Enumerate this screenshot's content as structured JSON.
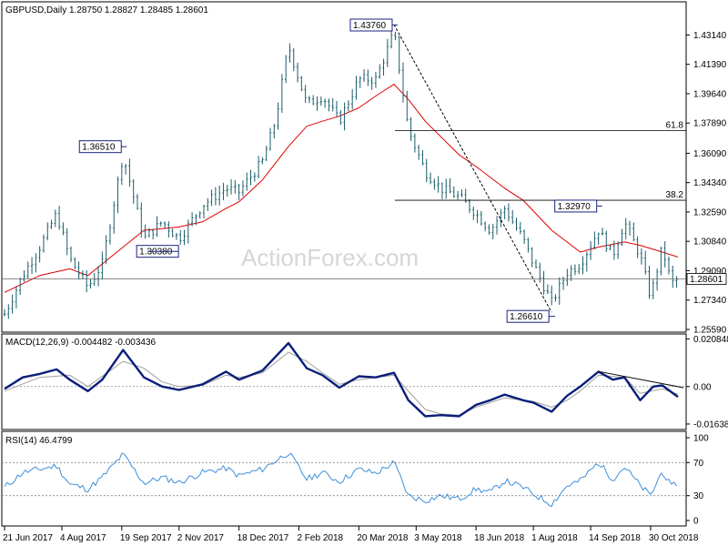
{
  "header": {
    "symbol": "GBPUSD,Daily",
    "ohlc": "1.28750 1.28827 1.28485 1.28601"
  },
  "watermark": "ActionForex.com",
  "colors": {
    "price_bars": "#1b5e6b",
    "ma": "#e00000",
    "macd": "#0a1e7a",
    "signal": "#a0a0a0",
    "rsi": "#3d8fd9",
    "fib": "#000000",
    "current": "#666666"
  },
  "chart_data": [
    {
      "type": "bar",
      "panel": "price",
      "title": "",
      "ylim": [
        1.2559,
        1.4414
      ],
      "y_ticks": [
        "1.43140",
        "1.41390",
        "1.39640",
        "1.37890",
        "1.36090",
        "1.34340",
        "1.32590",
        "1.30840",
        "1.29090",
        "1.27340",
        "1.25590"
      ],
      "current_value_label": "1.28601",
      "swing_labels": [
        {
          "text": "1.43760",
          "x": "2018-04-16",
          "y": 1.4376
        },
        {
          "text": "1.36510",
          "x": "2017-09-20",
          "y": 1.3651
        },
        {
          "text": "1.30380",
          "x": "2017-10-06",
          "y": 1.3038
        },
        {
          "text": "1.32970",
          "x": "2018-09-20",
          "y": 1.3297
        },
        {
          "text": "1.26610",
          "x": "2018-08-15",
          "y": 1.2661
        }
      ],
      "fib_levels": [
        {
          "label": "61.8",
          "value": 1.3744
        },
        {
          "label": "38.2",
          "value": 1.3329
        }
      ],
      "trendline": [
        {
          "x": "2018-04-16",
          "y": 1.4376
        },
        {
          "x": "2018-08-15",
          "y": 1.2661
        }
      ],
      "close_points": [
        {
          "x": "2017-06-21",
          "y": 1.265
        },
        {
          "x": "2017-07-05",
          "y": 1.288
        },
        {
          "x": "2017-07-18",
          "y": 1.305
        },
        {
          "x": "2017-07-31",
          "y": 1.325
        },
        {
          "x": "2017-08-10",
          "y": 1.298
        },
        {
          "x": "2017-08-24",
          "y": 1.281
        },
        {
          "x": "2017-09-04",
          "y": 1.295
        },
        {
          "x": "2017-09-20",
          "y": 1.36
        },
        {
          "x": "2017-10-06",
          "y": 1.31
        },
        {
          "x": "2017-10-20",
          "y": 1.32
        },
        {
          "x": "2017-11-02",
          "y": 1.31
        },
        {
          "x": "2017-11-20",
          "y": 1.33
        },
        {
          "x": "2017-12-08",
          "y": 1.34
        },
        {
          "x": "2017-12-18",
          "y": 1.338
        },
        {
          "x": "2018-01-05",
          "y": 1.356
        },
        {
          "x": "2018-01-15",
          "y": 1.38
        },
        {
          "x": "2018-01-25",
          "y": 1.425
        },
        {
          "x": "2018-02-08",
          "y": 1.39
        },
        {
          "x": "2018-02-20",
          "y": 1.395
        },
        {
          "x": "2018-03-05",
          "y": 1.38
        },
        {
          "x": "2018-03-20",
          "y": 1.405
        },
        {
          "x": "2018-04-02",
          "y": 1.405
        },
        {
          "x": "2018-04-16",
          "y": 1.433
        },
        {
          "x": "2018-04-27",
          "y": 1.375
        },
        {
          "x": "2018-05-10",
          "y": 1.35
        },
        {
          "x": "2018-05-22",
          "y": 1.34
        },
        {
          "x": "2018-06-05",
          "y": 1.335
        },
        {
          "x": "2018-06-18",
          "y": 1.325
        },
        {
          "x": "2018-06-29",
          "y": 1.315
        },
        {
          "x": "2018-07-10",
          "y": 1.328
        },
        {
          "x": "2018-07-24",
          "y": 1.31
        },
        {
          "x": "2018-08-01",
          "y": 1.295
        },
        {
          "x": "2018-08-15",
          "y": 1.272
        },
        {
          "x": "2018-08-27",
          "y": 1.29
        },
        {
          "x": "2018-09-06",
          "y": 1.295
        },
        {
          "x": "2018-09-20",
          "y": 1.315
        },
        {
          "x": "2018-10-01",
          "y": 1.3
        },
        {
          "x": "2018-10-10",
          "y": 1.32
        },
        {
          "x": "2018-10-22",
          "y": 1.3
        },
        {
          "x": "2018-10-30",
          "y": 1.275
        },
        {
          "x": "2018-11-08",
          "y": 1.305
        },
        {
          "x": "2018-11-15",
          "y": 1.283
        },
        {
          "x": "2018-11-20",
          "y": 1.286
        }
      ],
      "ma_points": [
        {
          "x": "2017-06-21",
          "y": 1.278
        },
        {
          "x": "2017-07-18",
          "y": 1.288
        },
        {
          "x": "2017-08-10",
          "y": 1.292
        },
        {
          "x": "2017-08-24",
          "y": 1.288
        },
        {
          "x": "2017-09-20",
          "y": 1.305
        },
        {
          "x": "2017-10-06",
          "y": 1.315
        },
        {
          "x": "2017-10-20",
          "y": 1.316
        },
        {
          "x": "2017-11-02",
          "y": 1.317
        },
        {
          "x": "2017-11-20",
          "y": 1.32
        },
        {
          "x": "2017-12-08",
          "y": 1.328
        },
        {
          "x": "2017-12-18",
          "y": 1.332
        },
        {
          "x": "2018-01-05",
          "y": 1.345
        },
        {
          "x": "2018-01-25",
          "y": 1.365
        },
        {
          "x": "2018-02-08",
          "y": 1.377
        },
        {
          "x": "2018-02-20",
          "y": 1.38
        },
        {
          "x": "2018-03-05",
          "y": 1.383
        },
        {
          "x": "2018-03-20",
          "y": 1.388
        },
        {
          "x": "2018-04-02",
          "y": 1.395
        },
        {
          "x": "2018-04-16",
          "y": 1.402
        },
        {
          "x": "2018-04-27",
          "y": 1.393
        },
        {
          "x": "2018-05-10",
          "y": 1.38
        },
        {
          "x": "2018-06-05",
          "y": 1.36
        },
        {
          "x": "2018-06-18",
          "y": 1.353
        },
        {
          "x": "2018-07-10",
          "y": 1.34
        },
        {
          "x": "2018-07-24",
          "y": 1.333
        },
        {
          "x": "2018-08-15",
          "y": 1.315
        },
        {
          "x": "2018-09-06",
          "y": 1.302
        },
        {
          "x": "2018-09-20",
          "y": 1.305
        },
        {
          "x": "2018-10-10",
          "y": 1.308
        },
        {
          "x": "2018-10-22",
          "y": 1.306
        },
        {
          "x": "2018-11-08",
          "y": 1.302
        },
        {
          "x": "2018-11-20",
          "y": 1.299
        }
      ]
    },
    {
      "type": "line",
      "panel": "macd",
      "title": "MACD(12,26,9) -0.004482 -0.003436",
      "ylim": [
        -0.018,
        0.021
      ],
      "y_ticks": [
        {
          "label": "0.020848",
          "value": 0.020848
        },
        {
          "label": "0.00",
          "value": 0
        },
        {
          "label": "-0.016389",
          "value": -0.016389
        }
      ],
      "macd_points": [
        {
          "x": "2017-06-21",
          "y": -0.001
        },
        {
          "x": "2017-07-05",
          "y": 0.004
        },
        {
          "x": "2017-07-18",
          "y": 0.0055
        },
        {
          "x": "2017-07-31",
          "y": 0.0075
        },
        {
          "x": "2017-08-10",
          "y": 0.003
        },
        {
          "x": "2017-08-24",
          "y": -0.002
        },
        {
          "x": "2017-09-04",
          "y": 0.003
        },
        {
          "x": "2017-09-20",
          "y": 0.016
        },
        {
          "x": "2017-10-06",
          "y": 0.004
        },
        {
          "x": "2017-10-20",
          "y": 0.0
        },
        {
          "x": "2017-11-02",
          "y": -0.0015
        },
        {
          "x": "2017-11-20",
          "y": 0.001
        },
        {
          "x": "2017-12-08",
          "y": 0.0065
        },
        {
          "x": "2017-12-18",
          "y": 0.003
        },
        {
          "x": "2018-01-05",
          "y": 0.007
        },
        {
          "x": "2018-01-25",
          "y": 0.019
        },
        {
          "x": "2018-02-08",
          "y": 0.008
        },
        {
          "x": "2018-02-20",
          "y": 0.005
        },
        {
          "x": "2018-03-05",
          "y": -0.0005
        },
        {
          "x": "2018-03-20",
          "y": 0.0045
        },
        {
          "x": "2018-04-02",
          "y": 0.004
        },
        {
          "x": "2018-04-16",
          "y": 0.006
        },
        {
          "x": "2018-04-27",
          "y": -0.006
        },
        {
          "x": "2018-05-10",
          "y": -0.013
        },
        {
          "x": "2018-05-22",
          "y": -0.0125
        },
        {
          "x": "2018-06-05",
          "y": -0.013
        },
        {
          "x": "2018-06-18",
          "y": -0.008
        },
        {
          "x": "2018-06-29",
          "y": -0.006
        },
        {
          "x": "2018-07-10",
          "y": -0.0035
        },
        {
          "x": "2018-07-24",
          "y": -0.006
        },
        {
          "x": "2018-08-01",
          "y": -0.007
        },
        {
          "x": "2018-08-15",
          "y": -0.011
        },
        {
          "x": "2018-08-27",
          "y": -0.004
        },
        {
          "x": "2018-09-06",
          "y": 0.0
        },
        {
          "x": "2018-09-20",
          "y": 0.0065
        },
        {
          "x": "2018-10-01",
          "y": 0.003
        },
        {
          "x": "2018-10-10",
          "y": 0.004
        },
        {
          "x": "2018-10-22",
          "y": -0.006
        },
        {
          "x": "2018-11-01",
          "y": 0.0
        },
        {
          "x": "2018-11-08",
          "y": 0.0005
        },
        {
          "x": "2018-11-20",
          "y": -0.0045
        }
      ],
      "signal_points": [
        {
          "x": "2017-06-21",
          "y": -0.002
        },
        {
          "x": "2017-07-18",
          "y": 0.004
        },
        {
          "x": "2017-08-10",
          "y": 0.005
        },
        {
          "x": "2017-08-24",
          "y": 0.0
        },
        {
          "x": "2017-09-20",
          "y": 0.011
        },
        {
          "x": "2017-10-06",
          "y": 0.008
        },
        {
          "x": "2017-10-20",
          "y": 0.002
        },
        {
          "x": "2017-11-02",
          "y": 0.0
        },
        {
          "x": "2017-11-20",
          "y": 0.0005
        },
        {
          "x": "2017-12-08",
          "y": 0.005
        },
        {
          "x": "2017-12-18",
          "y": 0.004
        },
        {
          "x": "2018-01-05",
          "y": 0.006
        },
        {
          "x": "2018-01-25",
          "y": 0.015
        },
        {
          "x": "2018-02-08",
          "y": 0.011
        },
        {
          "x": "2018-02-20",
          "y": 0.006
        },
        {
          "x": "2018-03-05",
          "y": 0.001
        },
        {
          "x": "2018-03-20",
          "y": 0.003
        },
        {
          "x": "2018-04-16",
          "y": 0.005
        },
        {
          "x": "2018-04-27",
          "y": -0.002
        },
        {
          "x": "2018-05-10",
          "y": -0.01
        },
        {
          "x": "2018-05-22",
          "y": -0.012
        },
        {
          "x": "2018-06-05",
          "y": -0.0125
        },
        {
          "x": "2018-06-18",
          "y": -0.009
        },
        {
          "x": "2018-07-10",
          "y": -0.005
        },
        {
          "x": "2018-08-01",
          "y": -0.0065
        },
        {
          "x": "2018-08-15",
          "y": -0.009
        },
        {
          "x": "2018-08-27",
          "y": -0.006
        },
        {
          "x": "2018-09-06",
          "y": -0.002
        },
        {
          "x": "2018-09-20",
          "y": 0.005
        },
        {
          "x": "2018-10-10",
          "y": 0.004
        },
        {
          "x": "2018-10-22",
          "y": -0.003
        },
        {
          "x": "2018-11-08",
          "y": -0.001
        },
        {
          "x": "2018-11-20",
          "y": -0.0034
        }
      ],
      "trendline": [
        {
          "x": "2018-09-20",
          "y": 0.0066
        },
        {
          "x": "2018-11-20",
          "y": -0.0005
        }
      ]
    },
    {
      "type": "line",
      "panel": "rsi",
      "title": "RSI(14) 46.4799",
      "ylim": [
        0,
        100
      ],
      "y_ticks": [
        {
          "label": "100",
          "value": 100
        },
        {
          "label": "70",
          "value": 70
        },
        {
          "label": "30",
          "value": 30
        },
        {
          "label": "0",
          "value": 0
        }
      ],
      "levels": [
        70,
        30
      ],
      "points": [
        {
          "x": "2017-06-21",
          "y": 40
        },
        {
          "x": "2017-07-05",
          "y": 58
        },
        {
          "x": "2017-07-18",
          "y": 62
        },
        {
          "x": "2017-07-31",
          "y": 66
        },
        {
          "x": "2017-08-10",
          "y": 44
        },
        {
          "x": "2017-08-24",
          "y": 38
        },
        {
          "x": "2017-09-04",
          "y": 52
        },
        {
          "x": "2017-09-20",
          "y": 80
        },
        {
          "x": "2017-10-06",
          "y": 45
        },
        {
          "x": "2017-10-20",
          "y": 52
        },
        {
          "x": "2017-11-02",
          "y": 46
        },
        {
          "x": "2017-11-20",
          "y": 58
        },
        {
          "x": "2017-12-08",
          "y": 63
        },
        {
          "x": "2017-12-18",
          "y": 54
        },
        {
          "x": "2018-01-05",
          "y": 62
        },
        {
          "x": "2018-01-25",
          "y": 82
        },
        {
          "x": "2018-02-08",
          "y": 50
        },
        {
          "x": "2018-02-20",
          "y": 58
        },
        {
          "x": "2018-03-05",
          "y": 47
        },
        {
          "x": "2018-03-20",
          "y": 62
        },
        {
          "x": "2018-04-02",
          "y": 57
        },
        {
          "x": "2018-04-16",
          "y": 70
        },
        {
          "x": "2018-04-27",
          "y": 30
        },
        {
          "x": "2018-05-10",
          "y": 24
        },
        {
          "x": "2018-05-22",
          "y": 30
        },
        {
          "x": "2018-06-05",
          "y": 26
        },
        {
          "x": "2018-06-18",
          "y": 38
        },
        {
          "x": "2018-06-29",
          "y": 34
        },
        {
          "x": "2018-07-10",
          "y": 48
        },
        {
          "x": "2018-07-24",
          "y": 40
        },
        {
          "x": "2018-08-01",
          "y": 32
        },
        {
          "x": "2018-08-15",
          "y": 20
        },
        {
          "x": "2018-08-27",
          "y": 42
        },
        {
          "x": "2018-09-06",
          "y": 48
        },
        {
          "x": "2018-09-20",
          "y": 70
        },
        {
          "x": "2018-10-01",
          "y": 50
        },
        {
          "x": "2018-10-10",
          "y": 65
        },
        {
          "x": "2018-10-22",
          "y": 42
        },
        {
          "x": "2018-10-30",
          "y": 30
        },
        {
          "x": "2018-11-08",
          "y": 60
        },
        {
          "x": "2018-11-15",
          "y": 40
        },
        {
          "x": "2018-11-20",
          "y": 46.5
        }
      ]
    }
  ],
  "x_axis": {
    "start": "2017-06-21",
    "end": "2018-11-20",
    "ticks": [
      {
        "label": "21 Jun 2017",
        "date": "2017-06-21"
      },
      {
        "label": "4 Aug 2017",
        "date": "2017-08-04"
      },
      {
        "label": "19 Sep 2017",
        "date": "2017-09-19"
      },
      {
        "label": "2 Nov 2017",
        "date": "2017-11-02"
      },
      {
        "label": "18 Dec 2017",
        "date": "2017-12-18"
      },
      {
        "label": "2 Feb 2018",
        "date": "2018-02-02"
      },
      {
        "label": "20 Mar 2018",
        "date": "2018-03-20"
      },
      {
        "label": "3 May 2018",
        "date": "2018-05-03"
      },
      {
        "label": "18 Jun 2018",
        "date": "2018-06-18"
      },
      {
        "label": "1 Aug 2018",
        "date": "2018-08-01"
      },
      {
        "label": "14 Sep 2018",
        "date": "2018-09-14"
      },
      {
        "label": "30 Oct 2018",
        "date": "2018-10-30"
      }
    ]
  }
}
